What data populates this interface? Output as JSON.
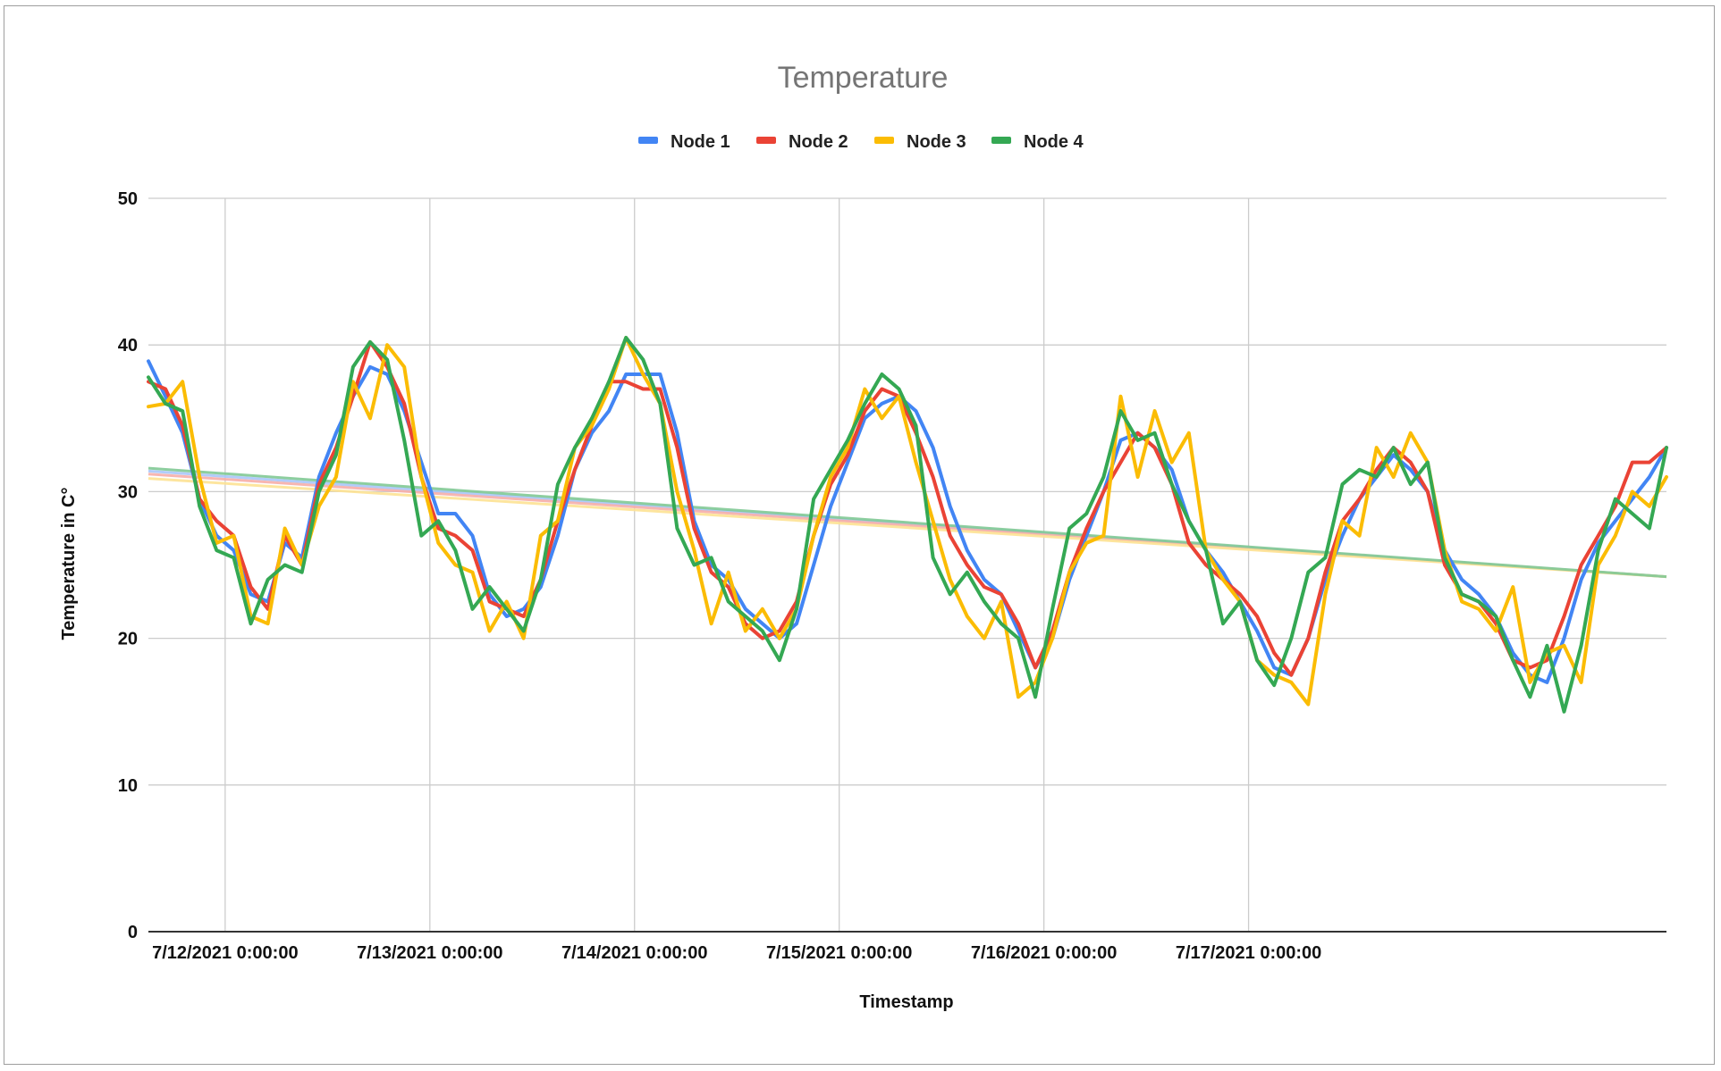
{
  "chart_data": {
    "type": "line",
    "title": "Temperature",
    "xlabel": "Timestamp",
    "ylabel": "Temperature in C°",
    "ylim": [
      0,
      50
    ],
    "yticks": [
      0,
      10,
      20,
      30,
      40,
      50
    ],
    "xlim": [
      "7/11/2021 15:00:00",
      "7/17/2021 22:00:00"
    ],
    "xticks": [
      "7/12/2021 0:00:00",
      "7/13/2021 0:00:00",
      "7/14/2021 0:00:00",
      "7/15/2021 0:00:00",
      "7/16/2021 0:00:00",
      "7/17/2021 0:00:00"
    ],
    "grid": true,
    "legend_position": "top",
    "x_unit_note": "x values are hours after 7/12/2021 0:00:00",
    "series": [
      {
        "name": "Node 1",
        "color": "#4285f4",
        "x": [
          -9,
          -7,
          -5,
          -3,
          -1,
          1,
          3,
          5,
          7,
          9,
          11,
          13,
          15,
          17,
          19,
          21,
          23,
          25,
          27,
          29,
          31,
          33,
          35,
          37,
          39,
          41,
          43,
          45,
          47,
          49,
          51,
          53,
          55,
          57,
          59,
          61,
          63,
          65,
          67,
          69,
          71,
          73,
          75,
          77,
          79,
          81,
          83,
          85,
          87,
          89,
          91,
          93,
          95,
          97,
          99,
          101,
          103,
          105,
          107,
          109,
          111,
          113,
          115,
          117,
          119,
          121,
          123,
          125,
          127,
          129,
          131,
          133,
          135,
          137,
          139,
          141,
          143,
          145,
          147,
          149,
          151,
          153,
          155,
          157,
          159,
          161,
          163,
          165,
          167,
          169
        ],
        "y": [
          38.9,
          36.5,
          34.0,
          29.5,
          27.0,
          26.0,
          23.0,
          22.5,
          26.5,
          25.5,
          31.0,
          34.0,
          36.5,
          38.5,
          38.0,
          35.5,
          32.0,
          28.5,
          28.5,
          27.0,
          23.0,
          21.5,
          22.0,
          23.5,
          27.0,
          31.5,
          34.0,
          35.5,
          38.0,
          38.0,
          38.0,
          34.0,
          28.0,
          25.0,
          24.0,
          22.0,
          21.0,
          20.0,
          21.0,
          25.0,
          29.0,
          32.0,
          35.0,
          36.0,
          36.5,
          35.5,
          33.0,
          29.0,
          26.0,
          24.0,
          23.0,
          20.5,
          18.0,
          20.0,
          24.0,
          27.0,
          30.0,
          33.5,
          34.0,
          33.0,
          31.5,
          28.0,
          26.0,
          24.5,
          22.5,
          20.5,
          18.0,
          17.5,
          20.0,
          24.0,
          27.0,
          29.5,
          31.0,
          32.5,
          31.5,
          30.0,
          26.0,
          24.0,
          23.0,
          21.5,
          19.0,
          17.5,
          17.0,
          20.0,
          24.0,
          26.5,
          28.0,
          29.5,
          31.0,
          33.0
        ]
      },
      {
        "name": "Node 2",
        "color": "#ea4335",
        "x": [
          -9,
          -7,
          -5,
          -3,
          -1,
          1,
          3,
          5,
          7,
          9,
          11,
          13,
          15,
          17,
          19,
          21,
          23,
          25,
          27,
          29,
          31,
          33,
          35,
          37,
          39,
          41,
          43,
          45,
          47,
          49,
          51,
          53,
          55,
          57,
          59,
          61,
          63,
          65,
          67,
          69,
          71,
          73,
          75,
          77,
          79,
          81,
          83,
          85,
          87,
          89,
          91,
          93,
          95,
          97,
          99,
          101,
          103,
          105,
          107,
          109,
          111,
          113,
          115,
          117,
          119,
          121,
          123,
          125,
          127,
          129,
          131,
          133,
          135,
          137,
          139,
          141,
          143,
          145,
          147,
          149,
          151,
          153,
          155,
          157,
          159,
          161,
          163,
          165,
          167,
          169
        ],
        "y": [
          37.5,
          37.0,
          34.5,
          29.5,
          28.0,
          27.0,
          23.5,
          22.0,
          27.0,
          25.0,
          30.5,
          33.0,
          36.5,
          40.2,
          38.5,
          36.0,
          31.0,
          27.5,
          27.0,
          26.0,
          22.5,
          22.0,
          21.5,
          24.0,
          28.0,
          31.5,
          34.5,
          37.5,
          37.5,
          37.0,
          37.0,
          33.0,
          27.5,
          24.5,
          23.5,
          21.0,
          20.0,
          20.5,
          22.5,
          27.0,
          30.5,
          32.5,
          35.5,
          37.0,
          36.5,
          34.0,
          31.0,
          27.0,
          25.0,
          23.5,
          23.0,
          21.0,
          18.0,
          20.5,
          24.5,
          27.5,
          30.0,
          32.0,
          34.0,
          33.0,
          30.5,
          26.5,
          25.0,
          24.0,
          23.0,
          21.5,
          19.0,
          17.5,
          20.0,
          24.5,
          28.0,
          29.5,
          31.5,
          33.0,
          32.0,
          30.0,
          25.0,
          23.0,
          22.5,
          21.0,
          18.5,
          18.0,
          18.5,
          21.5,
          25.0,
          27.0,
          29.0,
          32.0,
          32.0,
          33.0
        ]
      },
      {
        "name": "Node 3",
        "color": "#fbbc04",
        "x": [
          -9,
          -7,
          -5,
          -3,
          -1,
          1,
          3,
          5,
          7,
          9,
          11,
          13,
          15,
          17,
          19,
          21,
          23,
          25,
          27,
          29,
          31,
          33,
          35,
          37,
          39,
          41,
          43,
          45,
          47,
          49,
          51,
          53,
          55,
          57,
          59,
          61,
          63,
          65,
          67,
          69,
          71,
          73,
          75,
          77,
          79,
          81,
          83,
          85,
          87,
          89,
          91,
          93,
          95,
          97,
          99,
          101,
          103,
          105,
          107,
          109,
          111,
          113,
          115,
          117,
          119,
          121,
          123,
          125,
          127,
          129,
          131,
          133,
          135,
          137,
          139,
          141,
          143,
          145,
          147,
          149,
          151,
          153,
          155,
          157,
          159,
          161,
          163,
          165,
          167,
          169
        ],
        "y": [
          35.8,
          36.0,
          37.5,
          31.0,
          26.5,
          27.0,
          21.5,
          21.0,
          27.5,
          25.0,
          29.0,
          31.0,
          37.5,
          35.0,
          40.0,
          38.5,
          31.0,
          26.5,
          25.0,
          24.5,
          20.5,
          22.5,
          20.0,
          27.0,
          28.0,
          33.0,
          34.5,
          37.0,
          40.5,
          38.0,
          36.0,
          30.0,
          26.0,
          21.0,
          24.5,
          20.5,
          22.0,
          20.0,
          22.0,
          27.0,
          31.0,
          33.0,
          37.0,
          35.0,
          36.5,
          32.0,
          28.0,
          24.0,
          21.5,
          20.0,
          22.5,
          16.0,
          17.0,
          20.0,
          24.5,
          26.5,
          27.0,
          36.5,
          31.0,
          35.5,
          32.0,
          34.0,
          26.0,
          24.0,
          22.5,
          18.5,
          17.5,
          17.0,
          15.5,
          23.0,
          28.0,
          27.0,
          33.0,
          31.0,
          34.0,
          32.0,
          26.0,
          22.5,
          22.0,
          20.5,
          23.5,
          17.0,
          19.0,
          19.5,
          17.0,
          25.0,
          27.0,
          30.0,
          29.0,
          31.0
        ]
      },
      {
        "name": "Node 4",
        "color": "#34a853",
        "x": [
          -9,
          -7,
          -5,
          -3,
          -1,
          1,
          3,
          5,
          7,
          9,
          11,
          13,
          15,
          17,
          19,
          21,
          23,
          25,
          27,
          29,
          31,
          33,
          35,
          37,
          39,
          41,
          43,
          45,
          47,
          49,
          51,
          53,
          55,
          57,
          59,
          61,
          63,
          65,
          67,
          69,
          71,
          73,
          75,
          77,
          79,
          81,
          83,
          85,
          87,
          89,
          91,
          93,
          95,
          97,
          99,
          101,
          103,
          105,
          107,
          109,
          111,
          113,
          115,
          117,
          119,
          121,
          123,
          125,
          127,
          129,
          131,
          133,
          135,
          137,
          139,
          141,
          143,
          145,
          147,
          149,
          151,
          153,
          155,
          157,
          159,
          161,
          163,
          165,
          167,
          169
        ],
        "y": [
          37.8,
          36.0,
          35.5,
          29.0,
          26.0,
          25.5,
          21.0,
          24.0,
          25.0,
          24.5,
          30.0,
          32.5,
          38.5,
          40.2,
          39.0,
          33.5,
          27.0,
          28.0,
          26.0,
          22.0,
          23.5,
          22.0,
          20.5,
          24.0,
          30.5,
          33.0,
          35.0,
          37.5,
          40.5,
          39.0,
          36.0,
          27.5,
          25.0,
          25.5,
          22.5,
          21.5,
          20.5,
          18.5,
          22.0,
          29.5,
          31.5,
          33.5,
          36.0,
          38.0,
          37.0,
          34.5,
          25.5,
          23.0,
          24.5,
          22.5,
          21.0,
          20.0,
          16.0,
          22.0,
          27.5,
          28.5,
          31.0,
          35.5,
          33.5,
          34.0,
          30.5,
          28.0,
          26.0,
          21.0,
          22.5,
          18.5,
          16.8,
          20.0,
          24.5,
          25.5,
          30.5,
          31.5,
          31.0,
          33.0,
          30.5,
          32.0,
          25.5,
          23.0,
          22.5,
          21.5,
          18.5,
          16.0,
          19.5,
          15.0,
          19.5,
          26.0,
          29.5,
          28.5,
          27.5,
          33.0
        ]
      }
    ],
    "trendlines": [
      {
        "series": "Node 1",
        "color": "#a8c7fa",
        "x": [
          -9,
          169
        ],
        "y": [
          31.4,
          24.2
        ]
      },
      {
        "series": "Node 2",
        "color": "#f6aea9",
        "x": [
          -9,
          169
        ],
        "y": [
          31.2,
          24.2
        ]
      },
      {
        "series": "Node 3",
        "color": "#fde293",
        "x": [
          -9,
          169
        ],
        "y": [
          30.9,
          24.2
        ]
      },
      {
        "series": "Node 4",
        "color": "#81c995",
        "x": [
          -9,
          169
        ],
        "y": [
          31.6,
          24.2
        ]
      }
    ]
  }
}
